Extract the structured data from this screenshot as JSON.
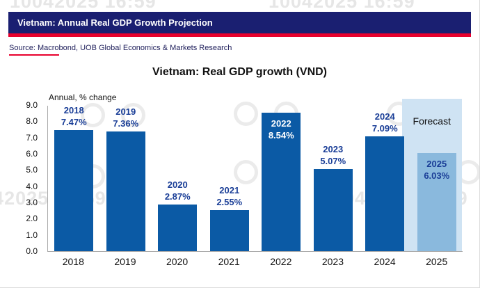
{
  "header": {
    "title": "Vietnam: Annual Real GDP Growth Projection"
  },
  "source": {
    "text": "Source: Macrobond, UOB Global Economics & Markets Research"
  },
  "watermark": {
    "text": "10042025 16:59"
  },
  "chart_data": {
    "type": "bar",
    "title": "Vietnam: Real GDP growth (VND)",
    "ylabel": "Annual, % change",
    "ylim": [
      0,
      9
    ],
    "ytick_step": 1,
    "grid": false,
    "legend_position": "none",
    "categories": [
      "2018",
      "2019",
      "2020",
      "2021",
      "2022",
      "2023",
      "2024",
      "2025"
    ],
    "values": [
      7.47,
      7.36,
      2.87,
      2.55,
      8.54,
      5.07,
      7.09,
      6.03
    ],
    "bar_labels": [
      "7.47%",
      "7.36%",
      "2.87%",
      "2.55%",
      "8.54%",
      "5.07%",
      "7.09%",
      "6.03%"
    ],
    "label_inside": [
      false,
      false,
      false,
      false,
      true,
      false,
      false,
      true
    ],
    "forecast": {
      "label": "Forecast",
      "categories": [
        "2025"
      ]
    },
    "colors": {
      "bar": "#0b5aa5",
      "forecast_bar": "#8ab9dd",
      "forecast_band": "#cfe3f3",
      "label": "#1a3e97",
      "label_on_bar": "#ffffff",
      "header_bg": "#1a1f71",
      "accent_red": "#e8002d"
    }
  }
}
